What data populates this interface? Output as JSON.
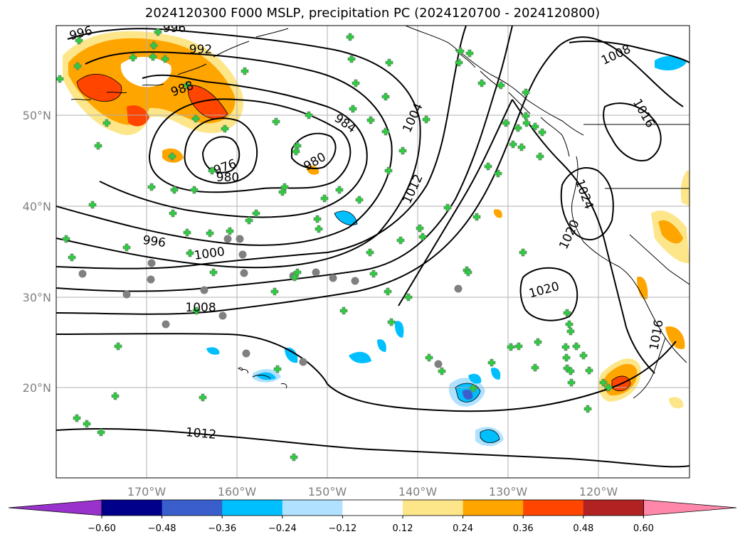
{
  "title": "2024120300 F000 MSLP, precipitation PC (2024120700 - 2024120800)",
  "lat_labels": [
    "50°N",
    "40°N",
    "30°N",
    "20°N"
  ],
  "lon_labels": [
    "170°W",
    "160°W",
    "150°W",
    "140°W",
    "130°W",
    "120°W"
  ],
  "isobar_labels": [
    "996",
    "996",
    "992",
    "988",
    "976",
    "980",
    "984",
    "980",
    "1004",
    "1012",
    "1008",
    "1016",
    "1024",
    "1020",
    "1020",
    "1016",
    "996",
    "1000",
    "1008",
    "1012"
  ],
  "colorbar": {
    "ticks": [
      "−0.60",
      "−0.48",
      "−0.36",
      "−0.24",
      "−0.12",
      "0.12",
      "0.24",
      "0.36",
      "0.48",
      "0.60"
    ],
    "colors": [
      "#9932cc",
      "#00008b",
      "#3a5fcd",
      "#00bfff",
      "#b0e2ff",
      "#ffffff",
      "#fde68a",
      "#ffa500",
      "#ff4500",
      "#b22222",
      "#ff88aa"
    ]
  },
  "colors": {
    "grid": "#b0b0b0",
    "coast": "#000000",
    "marker_plus": "#2ecc40",
    "marker_circle": "#808080"
  }
}
